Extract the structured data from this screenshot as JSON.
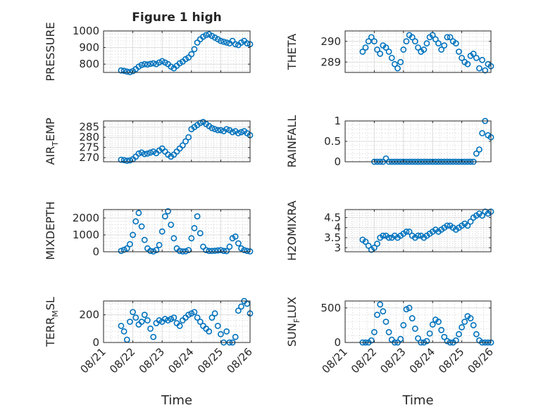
{
  "title": "Figure 1 high",
  "x_axis_label": "Time",
  "marker_color": "#0072BD",
  "x_ticks": [
    "08/21",
    "08/22",
    "08/23",
    "08/24",
    "08/25",
    "08/26"
  ],
  "chart_data": [
    {
      "type": "scatter",
      "ylabel": "PRESSURE",
      "ylim": [
        750,
        1000
      ],
      "yticks": [
        800,
        900,
        1000
      ],
      "xlim": [
        "08/21",
        "08/26"
      ],
      "x_days": [
        0.6,
        0.7,
        0.8,
        0.9,
        1.0,
        1.1,
        1.2,
        1.3,
        1.4,
        1.5,
        1.6,
        1.7,
        1.8,
        1.9,
        2.0,
        2.1,
        2.2,
        2.3,
        2.4,
        2.5,
        2.6,
        2.7,
        2.8,
        2.9,
        3.0,
        3.1,
        3.2,
        3.3,
        3.4,
        3.5,
        3.6,
        3.7,
        3.8,
        3.9,
        4.0,
        4.1,
        4.2,
        4.3,
        4.4,
        4.5,
        4.6,
        4.7,
        4.8,
        4.9,
        5.0
      ],
      "y": [
        762,
        760,
        755,
        752,
        758,
        770,
        785,
        795,
        800,
        798,
        802,
        805,
        800,
        810,
        818,
        810,
        800,
        785,
        775,
        790,
        805,
        815,
        830,
        840,
        860,
        890,
        930,
        950,
        965,
        975,
        980,
        970,
        960,
        950,
        940,
        935,
        930,
        925,
        940,
        920,
        915,
        930,
        940,
        925,
        920
      ]
    },
    {
      "type": "scatter",
      "ylabel": "THETA",
      "ylim": [
        288.5,
        290.5
      ],
      "yticks": [
        289,
        290
      ],
      "xlim": [
        "08/21",
        "08/26"
      ],
      "x_days": [
        0.6,
        0.7,
        0.8,
        0.9,
        1.0,
        1.1,
        1.2,
        1.3,
        1.4,
        1.5,
        1.6,
        1.7,
        1.8,
        1.9,
        2.0,
        2.1,
        2.2,
        2.3,
        2.4,
        2.5,
        2.6,
        2.7,
        2.8,
        2.9,
        3.0,
        3.1,
        3.2,
        3.3,
        3.4,
        3.5,
        3.6,
        3.7,
        3.8,
        3.9,
        4.0,
        4.1,
        4.2,
        4.3,
        4.4,
        4.5,
        4.6,
        4.7,
        4.8,
        4.9,
        5.0
      ],
      "y": [
        289.5,
        289.7,
        290.0,
        290.2,
        290.0,
        289.6,
        289.4,
        289.8,
        289.7,
        289.5,
        289.2,
        288.9,
        288.7,
        289.0,
        289.6,
        290.0,
        290.3,
        290.2,
        290.0,
        289.7,
        289.5,
        289.6,
        289.9,
        290.2,
        290.3,
        290.1,
        289.9,
        289.6,
        289.8,
        290.2,
        290.2,
        290.0,
        289.9,
        289.5,
        289.2,
        289.0,
        288.9,
        289.3,
        289.4,
        289.2,
        288.7,
        289.1,
        288.6,
        288.9,
        288.8
      ]
    },
    {
      "type": "scatter",
      "ylabel": "AIR_TEMP",
      "ylim": [
        268,
        288
      ],
      "yticks": [
        270,
        275,
        280,
        285
      ],
      "xlim": [
        "08/21",
        "08/26"
      ],
      "x_days": [
        0.6,
        0.7,
        0.8,
        0.9,
        1.0,
        1.1,
        1.2,
        1.3,
        1.4,
        1.5,
        1.6,
        1.7,
        1.8,
        1.9,
        2.0,
        2.1,
        2.2,
        2.3,
        2.4,
        2.5,
        2.6,
        2.7,
        2.8,
        2.9,
        3.0,
        3.1,
        3.2,
        3.3,
        3.4,
        3.5,
        3.6,
        3.7,
        3.8,
        3.9,
        4.0,
        4.1,
        4.2,
        4.3,
        4.4,
        4.5,
        4.6,
        4.7,
        4.8,
        4.9,
        5.0
      ],
      "y": [
        269,
        268.8,
        268.5,
        268.7,
        269.2,
        270.5,
        272,
        272.5,
        271.8,
        272,
        272.5,
        273,
        272.2,
        273.5,
        274.5,
        273,
        271.5,
        270.5,
        271.5,
        273,
        274.5,
        276,
        278,
        280,
        284,
        285,
        286,
        287,
        287.5,
        286.5,
        285.5,
        284.5,
        284,
        283.5,
        283.5,
        283,
        284,
        283.5,
        282.5,
        283,
        282,
        282.5,
        283,
        282,
        281
      ]
    },
    {
      "type": "scatter",
      "ylabel": "RAINFALL",
      "ylim": [
        0,
        1
      ],
      "yticks": [
        0,
        0.5,
        1
      ],
      "xlim": [
        "08/21",
        "08/26"
      ],
      "x_days": [
        1.0,
        1.1,
        1.2,
        1.3,
        1.4,
        1.5,
        1.6,
        1.7,
        1.8,
        1.9,
        2.0,
        2.1,
        2.2,
        2.3,
        2.4,
        2.5,
        2.6,
        2.7,
        2.8,
        2.9,
        3.0,
        3.1,
        3.2,
        3.3,
        3.4,
        3.5,
        3.6,
        3.7,
        3.8,
        3.9,
        4.0,
        4.1,
        4.2,
        4.3,
        4.4,
        4.5,
        4.6,
        4.7,
        4.8,
        4.9,
        5.0
      ],
      "y": [
        0,
        0,
        0,
        0,
        0.08,
        0,
        0,
        0,
        0,
        0,
        0,
        0,
        0,
        0,
        0,
        0,
        0,
        0,
        0,
        0,
        0,
        0,
        0,
        0,
        0,
        0,
        0,
        0,
        0,
        0,
        0,
        0,
        0,
        0,
        0,
        0.2,
        0.3,
        0.7,
        1.0,
        0.65,
        0.6
      ]
    },
    {
      "type": "scatter",
      "ylabel": "MIXDEPTH",
      "ylim": [
        0,
        2500
      ],
      "yticks": [
        0,
        1000,
        2000
      ],
      "xlim": [
        "08/21",
        "08/26"
      ],
      "x_days": [
        0.6,
        0.7,
        0.8,
        0.9,
        1.0,
        1.1,
        1.2,
        1.3,
        1.4,
        1.5,
        1.6,
        1.7,
        1.8,
        1.9,
        2.0,
        2.1,
        2.2,
        2.3,
        2.4,
        2.5,
        2.6,
        2.7,
        2.8,
        2.9,
        3.0,
        3.1,
        3.2,
        3.3,
        3.4,
        3.5,
        3.6,
        3.7,
        3.8,
        3.9,
        4.0,
        4.1,
        4.2,
        4.3,
        4.4,
        4.5,
        4.6,
        4.7,
        4.8,
        4.9,
        5.0
      ],
      "y": [
        50,
        120,
        200,
        450,
        1000,
        1800,
        2300,
        1500,
        700,
        200,
        50,
        20,
        100,
        400,
        1200,
        2100,
        2400,
        1600,
        800,
        200,
        50,
        20,
        30,
        100,
        800,
        1400,
        2100,
        1100,
        300,
        100,
        50,
        50,
        60,
        80,
        100,
        50,
        40,
        300,
        800,
        900,
        500,
        200,
        100,
        50,
        20
      ]
    },
    {
      "type": "scatter",
      "ylabel": "H2OMIXRA",
      "ylim": [
        2.8,
        4.9
      ],
      "yticks": [
        3,
        3.5,
        4,
        4.5
      ],
      "xlim": [
        "08/21",
        "08/26"
      ],
      "x_days": [
        0.6,
        0.7,
        0.8,
        0.9,
        1.0,
        1.1,
        1.2,
        1.3,
        1.4,
        1.5,
        1.6,
        1.7,
        1.8,
        1.9,
        2.0,
        2.1,
        2.2,
        2.3,
        2.4,
        2.5,
        2.6,
        2.7,
        2.8,
        2.9,
        3.0,
        3.1,
        3.2,
        3.3,
        3.4,
        3.5,
        3.6,
        3.7,
        3.8,
        3.9,
        4.0,
        4.1,
        4.2,
        4.3,
        4.4,
        4.5,
        4.6,
        4.7,
        4.8,
        4.9,
        5.0
      ],
      "y": [
        3.4,
        3.3,
        3.1,
        2.9,
        3.0,
        3.2,
        3.5,
        3.6,
        3.6,
        3.5,
        3.5,
        3.6,
        3.5,
        3.6,
        3.7,
        3.8,
        3.8,
        3.6,
        3.5,
        3.6,
        3.6,
        3.5,
        3.6,
        3.7,
        3.8,
        3.9,
        3.8,
        3.9,
        4.0,
        4.1,
        4.1,
        4.0,
        3.9,
        4.0,
        4.1,
        4.2,
        4.1,
        4.3,
        4.5,
        4.6,
        4.7,
        4.6,
        4.8,
        4.7,
        4.8
      ]
    },
    {
      "type": "scatter",
      "ylabel": "TERR_MSL",
      "ylim": [
        0,
        300
      ],
      "yticks": [
        0,
        200
      ],
      "xlim": [
        "08/21",
        "08/26"
      ],
      "x_days": [
        0.6,
        0.7,
        0.8,
        0.9,
        1.0,
        1.1,
        1.2,
        1.3,
        1.4,
        1.5,
        1.6,
        1.7,
        1.8,
        1.9,
        2.0,
        2.1,
        2.2,
        2.3,
        2.4,
        2.5,
        2.6,
        2.7,
        2.8,
        2.9,
        3.0,
        3.1,
        3.2,
        3.3,
        3.4,
        3.5,
        3.6,
        3.7,
        3.8,
        3.9,
        4.0,
        4.1,
        4.2,
        4.3,
        4.4,
        4.5,
        4.6,
        4.7,
        4.8,
        4.9,
        5.0
      ],
      "y": [
        120,
        80,
        20,
        150,
        220,
        180,
        130,
        150,
        200,
        160,
        100,
        40,
        140,
        160,
        150,
        170,
        160,
        170,
        180,
        140,
        120,
        160,
        180,
        200,
        210,
        220,
        180,
        150,
        120,
        100,
        80,
        180,
        210,
        120,
        60,
        0,
        80,
        0,
        0,
        40,
        230,
        260,
        300,
        280,
        210
      ]
    },
    {
      "type": "scatter",
      "ylabel": "SUN_FLUX",
      "ylim": [
        0,
        600
      ],
      "yticks": [
        0,
        500
      ],
      "xlim": [
        "08/21",
        "08/26"
      ],
      "x_days": [
        0.6,
        0.7,
        0.8,
        0.9,
        1.0,
        1.1,
        1.2,
        1.3,
        1.4,
        1.5,
        1.6,
        1.7,
        1.8,
        1.9,
        2.0,
        2.1,
        2.2,
        2.3,
        2.4,
        2.5,
        2.6,
        2.7,
        2.8,
        2.9,
        3.0,
        3.1,
        3.2,
        3.3,
        3.4,
        3.5,
        3.6,
        3.7,
        3.8,
        3.9,
        4.0,
        4.1,
        4.2,
        4.3,
        4.4,
        4.5,
        4.6,
        4.7,
        4.8,
        4.9,
        5.0
      ],
      "y": [
        0,
        0,
        0,
        30,
        150,
        400,
        550,
        450,
        300,
        150,
        40,
        0,
        0,
        50,
        250,
        480,
        500,
        350,
        200,
        60,
        0,
        0,
        20,
        130,
        260,
        330,
        300,
        180,
        80,
        20,
        0,
        0,
        30,
        120,
        220,
        300,
        380,
        350,
        250,
        120,
        30,
        0,
        0,
        0,
        0
      ]
    }
  ]
}
